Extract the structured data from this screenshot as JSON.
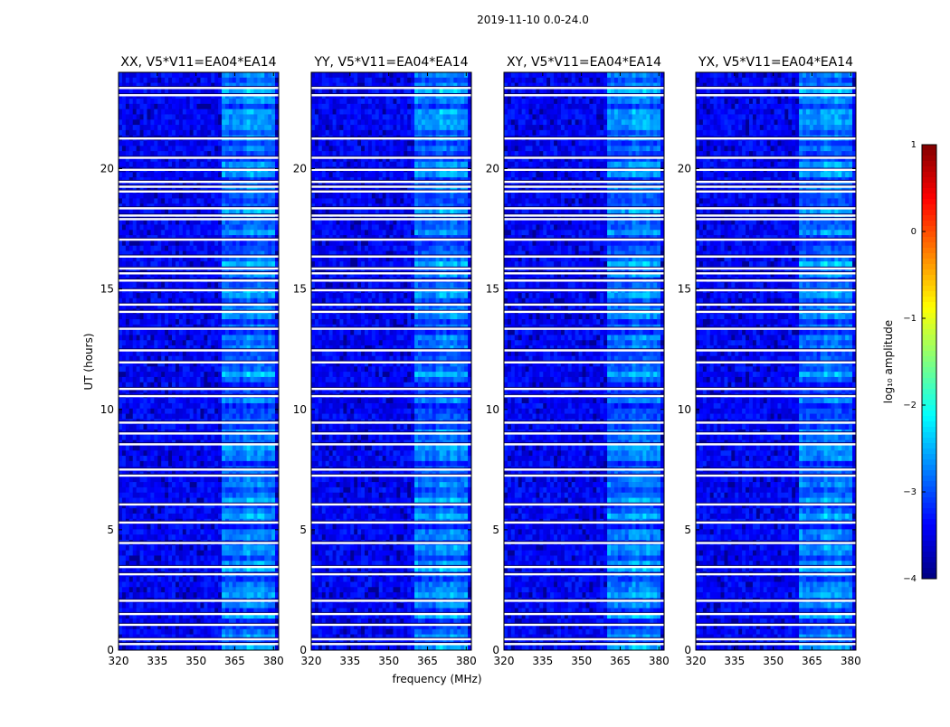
{
  "chart_data": {
    "type": "heatmap",
    "suptitle": "2019-11-10 0.0-24.0",
    "panels": [
      {
        "title": "XX, V5*V11=EA04*EA14",
        "polarization": "XX"
      },
      {
        "title": "YY, V5*V11=EA04*EA14",
        "polarization": "YY"
      },
      {
        "title": "XY, V5*V11=EA04*EA14",
        "polarization": "XY"
      },
      {
        "title": "YX, V5*V11=EA04*EA14",
        "polarization": "YX"
      }
    ],
    "xlabel": "frequency (MHz)",
    "ylabel": "UT (hours)",
    "xlim": [
      320,
      382
    ],
    "ylim": [
      0,
      24
    ],
    "xticks": [
      320,
      335,
      350,
      365,
      380
    ],
    "yticks": [
      0,
      5,
      10,
      15,
      20
    ],
    "colorbar": {
      "label": "log₁₀ amplitude",
      "vmin": -4,
      "vmax": 1,
      "ticks": [
        -4,
        -3,
        -2,
        -1,
        0,
        1
      ],
      "tick_labels": [
        "−4",
        "−3",
        "−2",
        "−1",
        "0",
        "1"
      ],
      "colormap": "jet"
    },
    "rfi_band_mhz": [
      360,
      380
    ],
    "background_log_amplitude": -3.4,
    "rfi_log_amplitude": -2.2,
    "flagged_time_rows_hours": [
      0.25,
      0.45,
      1.05,
      1.5,
      2.05,
      3.15,
      3.45,
      4.45,
      5.3,
      6.05,
      7.25,
      7.5,
      8.55,
      9.0,
      9.45,
      10.55,
      10.85,
      11.95,
      12.45,
      13.35,
      14.05,
      14.35,
      14.95,
      15.35,
      15.65,
      15.85,
      16.35,
      17.05,
      17.9,
      18.05,
      18.35,
      19.05,
      19.25,
      19.45,
      19.95,
      20.45,
      21.25,
      23.05,
      23.35
    ]
  }
}
